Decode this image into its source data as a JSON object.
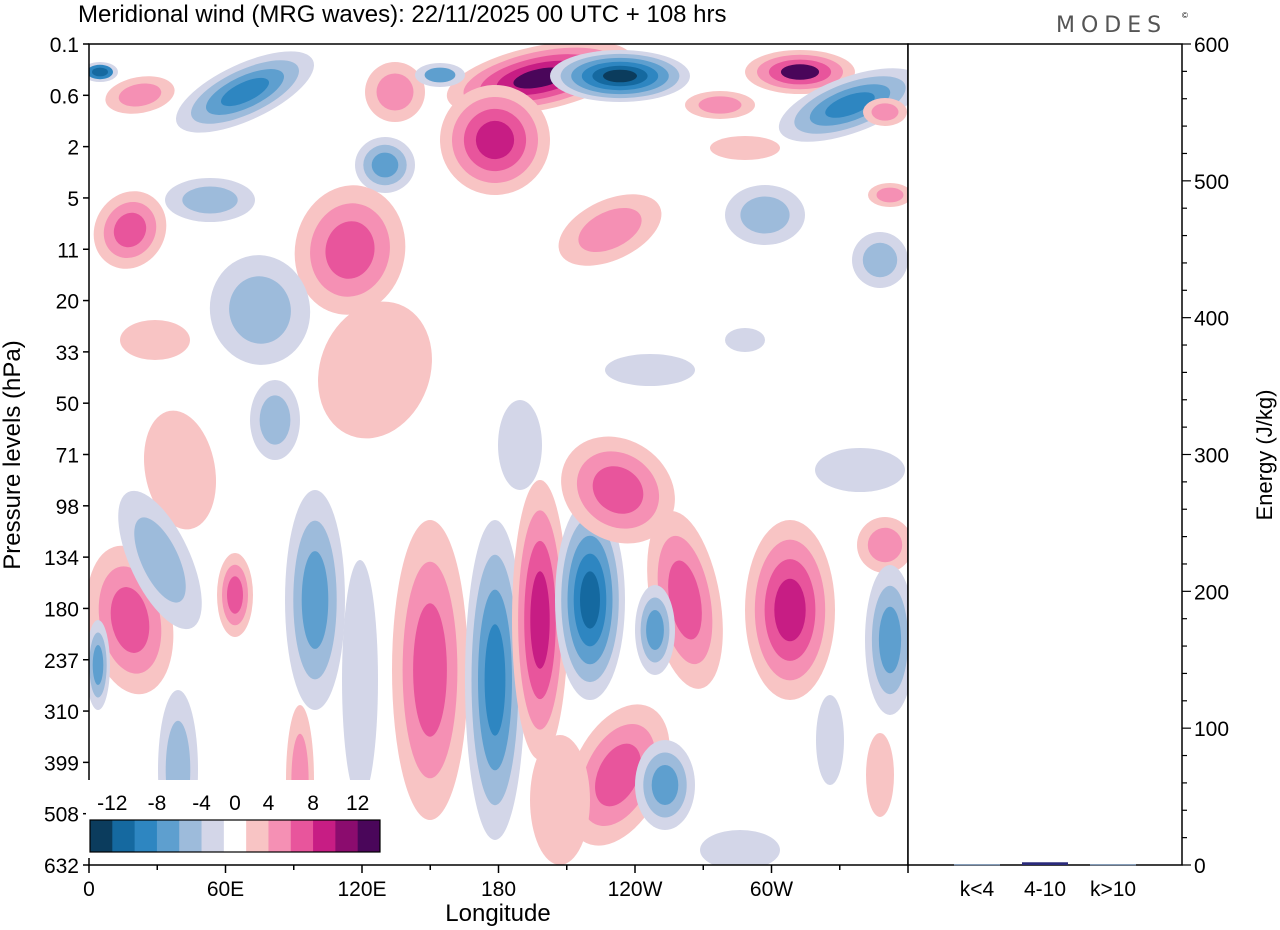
{
  "chart_data": {
    "type": "heatmap",
    "title": "Meridional wind (MRG waves):  22/11/2025  00 UTC  + 108 hrs",
    "brand": "MODES",
    "brand_mark": "©",
    "xlabel": "Longitude",
    "ylabel": "Pressure levels (hPa)",
    "x_ticks": [
      "0",
      "60E",
      "120E",
      "180",
      "120W",
      "60W"
    ],
    "x_tick_degrees": [
      0,
      60,
      120,
      180,
      240,
      300
    ],
    "x_range_degrees": [
      0,
      360
    ],
    "y_levels": [
      "0.1",
      "0.6",
      "2",
      "5",
      "11",
      "20",
      "33",
      "50",
      "71",
      "98",
      "134",
      "180",
      "237",
      "310",
      "399",
      "508",
      "632"
    ],
    "colorbar": {
      "labels": [
        "-12",
        "-8",
        "-4",
        "0",
        "4",
        "8",
        "12"
      ],
      "bounds": [
        -14,
        -12,
        -10,
        -8,
        -6,
        -4,
        -2,
        2,
        4,
        6,
        8,
        10,
        12,
        14
      ],
      "colors": [
        "#0b3c5d",
        "#1569a0",
        "#2e86c1",
        "#5e9fcf",
        "#9dbbdb",
        "#d3d6e8",
        "#ffffff",
        "#f8c4c4",
        "#f590b4",
        "#e8559c",
        "#c71d84",
        "#8b0c6e",
        "#4a065a"
      ]
    },
    "colors": {
      "neg_strong": "#0b3c5d",
      "neg_2": "#1569a0",
      "neg_3": "#2e86c1",
      "neg_4": "#5e9fcf",
      "neg_5": "#9dbbdb",
      "neg_weak": "#d3d6e8",
      "pos_weak": "#f8c4c4",
      "pos_2": "#f590b4",
      "pos_3": "#e8559c",
      "pos_4": "#c71d84",
      "pos_strong": "#4a065a"
    },
    "energy_panel": {
      "ylabel": "Energy (J/kg)",
      "y_ticks": [
        "0",
        "100",
        "200",
        "300",
        "400",
        "500",
        "600"
      ],
      "y_range": [
        0,
        600
      ],
      "categories": [
        "k<4",
        "4-10",
        "k>10"
      ],
      "values": [
        0.5,
        2.0,
        0.5
      ],
      "bar_colors": [
        "#87a8d0",
        "#2a2a7a",
        "#87a8d0"
      ]
    }
  }
}
